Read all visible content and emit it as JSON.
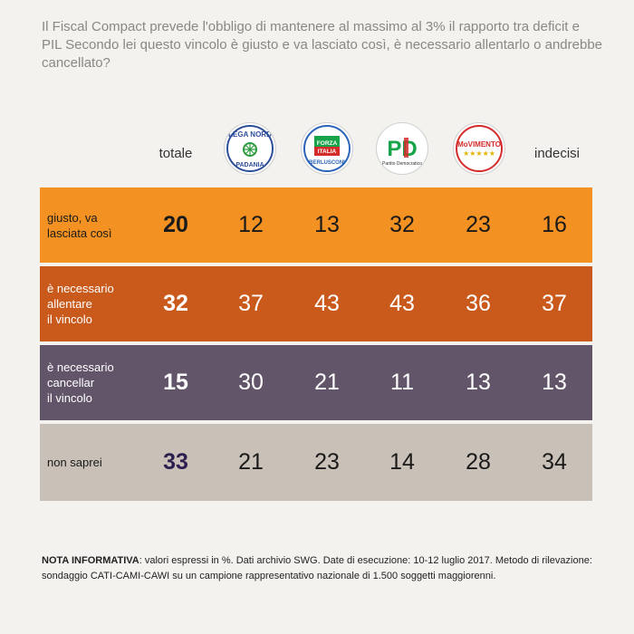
{
  "question": "Il Fiscal Compact prevede l'obbligo di mantenere al massimo al 3% il rapporto tra deficit e PIL Secondo lei questo vincolo è giusto e va lasciato così, è necessario allentarlo o andrebbe cancellato?",
  "header": {
    "totale": "totale",
    "indecisi": "indecisi",
    "parties": [
      {
        "name": "Lega Nord",
        "logo_text_top": "LEGA NORD",
        "logo_text_bottom": "PADANIA",
        "icon": "lega-nord-logo"
      },
      {
        "name": "Forza Italia",
        "logo_text_top": "FORZA ITALIA",
        "logo_text_bottom": "BERLUSCONI",
        "icon": "forza-italia-logo"
      },
      {
        "name": "Partito Democratico",
        "logo_text_top": "PD",
        "logo_text_bottom": "Partito Democratico",
        "icon": "pd-logo"
      },
      {
        "name": "Movimento 5 Stelle",
        "logo_text_top": "MoVIMENTO",
        "logo_text_bottom": "★★★★★",
        "icon": "m5s-logo"
      }
    ]
  },
  "colors": {
    "row1_bg": "#f39222",
    "row2_bg": "#c95a1c",
    "row3_bg": "#635569",
    "row4_bg": "#c9c0b7",
    "total_row4": "#2a1f4f"
  },
  "chart_data": {
    "type": "table",
    "columns": [
      "totale",
      "Lega Nord",
      "Forza Italia",
      "Partito Democratico",
      "Movimento 5 Stelle",
      "indecisi"
    ],
    "rows": [
      {
        "label": "giusto, va lasciata così",
        "label_lines": [
          "giusto, va",
          "lasciata così"
        ],
        "values": [
          20,
          12,
          13,
          32,
          23,
          16
        ]
      },
      {
        "label": "è necessario allentare il vincolo",
        "label_lines": [
          "è necessario",
          "allentare",
          "il vincolo"
        ],
        "values": [
          32,
          37,
          43,
          43,
          36,
          37
        ]
      },
      {
        "label": "è necessario cancellar il vincolo",
        "label_lines": [
          "è necessario",
          "cancellar",
          "il vincolo"
        ],
        "values": [
          15,
          30,
          21,
          11,
          13,
          13
        ]
      },
      {
        "label": "non saprei",
        "label_lines": [
          "non saprei"
        ],
        "values": [
          33,
          21,
          23,
          14,
          28,
          34
        ]
      }
    ],
    "unit": "%"
  },
  "note": {
    "bold": "NOTA INFORMATIVA",
    "text": ": valori espressi in %. Dati archivio SWG. Date di esecuzione: 10-12 luglio 2017. Metodo di rilevazione: sondaggio CATI-CAMI-CAWI su un campione rappresentativo nazionale di 1.500 soggetti maggiorenni."
  }
}
